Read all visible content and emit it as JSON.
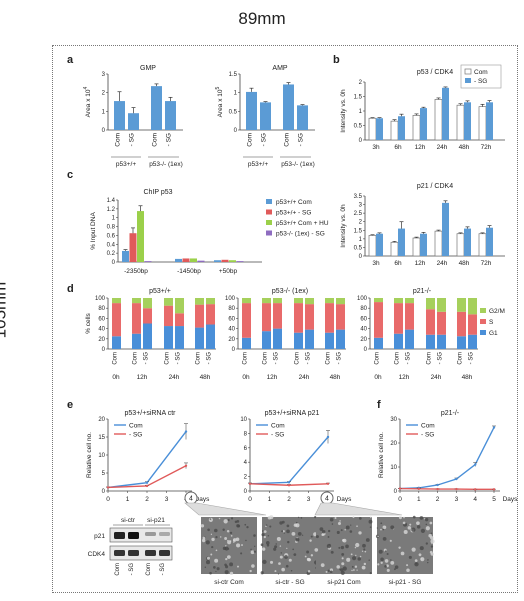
{
  "page": {
    "width_label": "89mm",
    "height_label": "105mm"
  },
  "chart_data": [
    {
      "panel": "a",
      "type": "bar",
      "title": "GMP",
      "ylabel": "Area x 10",
      "ylabel_exp": "4",
      "ylim": [
        0,
        3
      ],
      "yticks": [
        0,
        1,
        2,
        3
      ],
      "categories": [
        "Com",
        "- SG",
        "Com",
        "- SG"
      ],
      "groups": [
        "p53+/+",
        "p53-/- (1ex)"
      ],
      "values": [
        1.55,
        0.9,
        2.35,
        1.55
      ],
      "errors": [
        0.5,
        0.3,
        0.12,
        0.2
      ]
    },
    {
      "panel": "a",
      "type": "bar",
      "title": "AMP",
      "ylabel": "Area x 10",
      "ylabel_exp": "5",
      "ylim": [
        0,
        1.5
      ],
      "yticks": [
        0,
        0.5,
        1,
        1.5
      ],
      "categories": [
        "Com",
        "- SG",
        "Com",
        "- SG"
      ],
      "groups": [
        "p53+/+",
        "p53-/- (1ex)"
      ],
      "values": [
        1.02,
        0.74,
        1.22,
        0.66
      ],
      "errors": [
        0.1,
        0.02,
        0.05,
        0.02
      ]
    },
    {
      "panel": "b",
      "type": "bar",
      "title": "p53 / CDK4",
      "ylabel": "Intensity vs. 0h",
      "ylim": [
        0,
        2
      ],
      "yticks": [
        0,
        0.5,
        1,
        1.5,
        2
      ],
      "categories": [
        "3h",
        "6h",
        "12h",
        "24h",
        "48h",
        "72h"
      ],
      "series": [
        {
          "name": "Com",
          "values": [
            0.75,
            0.65,
            0.85,
            1.4,
            1.2,
            1.15
          ]
        },
        {
          "name": "- SG",
          "values": [
            0.75,
            0.82,
            1.1,
            1.8,
            1.3,
            1.3
          ]
        }
      ],
      "errors": [
        [
          0.02,
          0.05,
          0.05,
          0.05,
          0.05,
          0.08
        ],
        [
          0.02,
          0.07,
          0.03,
          0.03,
          0.05,
          0.06
        ]
      ]
    },
    {
      "panel": "b",
      "type": "bar",
      "title": "p21 / CDK4",
      "ylabel": "Intensity vs. 0h",
      "ylim": [
        0,
        3.5
      ],
      "yticks": [
        0,
        0.5,
        1,
        1.5,
        2,
        2.5,
        3,
        3.5
      ],
      "categories": [
        "3h",
        "6h",
        "12h",
        "24h",
        "48h",
        "72h"
      ],
      "series": [
        {
          "name": "Com",
          "values": [
            1.2,
            0.8,
            1.05,
            1.45,
            1.3,
            1.3
          ]
        },
        {
          "name": "- SG",
          "values": [
            1.3,
            1.6,
            1.3,
            3.1,
            1.6,
            1.65
          ]
        }
      ],
      "errors": [
        [
          0.04,
          0.05,
          0.05,
          0.06,
          0.05,
          0.05
        ],
        [
          0.05,
          0.4,
          0.08,
          0.12,
          0.1,
          0.12
        ]
      ]
    },
    {
      "panel": "c",
      "type": "bar",
      "title": "ChIP p53",
      "ylabel": "% Input DNA",
      "ylim": [
        0,
        1.4
      ],
      "yticks": [
        0,
        0.2,
        0.4,
        0.6,
        0.8,
        1,
        1.2,
        1.4
      ],
      "categories": [
        "-2350bp",
        "-1450bp",
        "+50bp"
      ],
      "series": [
        {
          "name": "p53+/+ Com",
          "color": "#5b9bd5",
          "values": [
            0.25,
            0.07,
            0.04
          ]
        },
        {
          "name": "p53+/+ - SG",
          "color": "#e05a5a",
          "values": [
            0.65,
            0.08,
            0.05
          ]
        },
        {
          "name": "p53+/+ Com + HU",
          "color": "#9bd04a",
          "values": [
            1.15,
            0.08,
            0.04
          ]
        },
        {
          "name": "p53-/- (1ex) - SG",
          "color": "#8e6cc0",
          "values": [
            0.02,
            0.03,
            0.02
          ]
        }
      ]
    },
    {
      "panel": "d",
      "type": "bar",
      "stacked": true,
      "ylabel": "% cells",
      "ylim": [
        0,
        100
      ],
      "yticks": [
        0,
        20,
        40,
        60,
        80,
        100
      ],
      "legend": [
        "G2/M",
        "S",
        "G1"
      ],
      "colors": {
        "G1": "#4a8fd8",
        "S": "#e86a6a",
        "G2/M": "#a6d05c"
      },
      "subplots": [
        {
          "title": "p53+/+",
          "categories": [
            "Com",
            "Com",
            "- SG",
            "Com",
            "- SG",
            "Com",
            "- SG"
          ],
          "times": [
            "0h",
            "12h",
            "24h",
            "48h"
          ],
          "G1": [
            25,
            30,
            50,
            45,
            45,
            42,
            48
          ],
          "S": [
            65,
            60,
            30,
            40,
            25,
            45,
            40
          ],
          "G2/M": [
            10,
            10,
            20,
            15,
            30,
            13,
            12
          ]
        },
        {
          "title": "p53-/- (1ex)",
          "categories": [
            "Com",
            "Com",
            "- SG",
            "Com",
            "- SG",
            "Com",
            "- SG"
          ],
          "times": [
            "0h",
            "12h",
            "24h",
            "48h"
          ],
          "G1": [
            22,
            35,
            40,
            32,
            38,
            32,
            38
          ],
          "S": [
            68,
            55,
            50,
            58,
            50,
            58,
            50
          ],
          "G2/M": [
            10,
            10,
            10,
            10,
            12,
            10,
            12
          ]
        },
        {
          "title": "p21-/-",
          "categories": [
            "Com",
            "Com",
            "- SG",
            "Com",
            "- SG",
            "Com",
            "- SG"
          ],
          "times": [
            "0h",
            "12h",
            "24h",
            "48h"
          ],
          "G1": [
            22,
            30,
            38,
            28,
            28,
            25,
            28
          ],
          "S": [
            70,
            60,
            52,
            50,
            45,
            48,
            40
          ],
          "G2/M": [
            8,
            10,
            10,
            22,
            27,
            27,
            32
          ]
        }
      ]
    },
    {
      "panel": "e",
      "type": "line",
      "title": "p53+/+siRNA ctr",
      "ylabel": "Relative cell no.",
      "xlabel": "Days",
      "ylim": [
        0,
        20
      ],
      "yticks": [
        0,
        5,
        10,
        15,
        20
      ],
      "x": [
        0,
        2,
        4
      ],
      "xticks": [
        0,
        1,
        2,
        3,
        4
      ],
      "series": [
        {
          "name": "Com",
          "color": "#4a8fd8",
          "values": [
            1,
            2.3,
            16.5
          ],
          "errors": [
            0.1,
            0.3,
            2.2
          ]
        },
        {
          "name": "- SG",
          "color": "#e05a5a",
          "values": [
            1,
            1.4,
            7
          ],
          "errors": [
            0.1,
            0.2,
            0.8
          ]
        }
      ]
    },
    {
      "panel": "e",
      "type": "line",
      "title": "p53+/+siRNA p21",
      "ylabel": "",
      "xlabel": "Days",
      "ylim": [
        0,
        10
      ],
      "yticks": [
        0,
        2,
        4,
        6,
        8,
        10
      ],
      "x": [
        0,
        2,
        4
      ],
      "xticks": [
        0,
        1,
        2,
        3,
        4
      ],
      "series": [
        {
          "name": "Com",
          "color": "#4a8fd8",
          "values": [
            1,
            1.2,
            7.5
          ],
          "errors": [
            0.1,
            0.1,
            0.9
          ]
        },
        {
          "name": "- SG",
          "color": "#e05a5a",
          "values": [
            1,
            0.8,
            1
          ],
          "errors": [
            0.1,
            0.1,
            0.1
          ]
        }
      ]
    },
    {
      "panel": "f",
      "type": "line",
      "title": "p21-/-",
      "ylabel": "Relative cell no.",
      "xlabel": "Days",
      "ylim": [
        0,
        30
      ],
      "yticks": [
        0,
        10,
        20,
        30
      ],
      "x": [
        0,
        1,
        2,
        3,
        4,
        5
      ],
      "xticks": [
        0,
        1,
        2,
        3,
        4,
        5
      ],
      "series": [
        {
          "name": "Com",
          "color": "#4a8fd8",
          "values": [
            1,
            1.3,
            2.5,
            5,
            11,
            26.5
          ],
          "errors": [
            0.1,
            0.1,
            0.2,
            0.4,
            0.8,
            0.6
          ]
        },
        {
          "name": "- SG",
          "color": "#e05a5a",
          "values": [
            1,
            0.9,
            0.8,
            0.8,
            0.7,
            0.7
          ],
          "errors": [
            0.05,
            0.05,
            0.05,
            0.05,
            0.05,
            0.05
          ]
        }
      ]
    }
  ],
  "panel_letters": [
    "a",
    "b",
    "c",
    "d",
    "e",
    "f"
  ],
  "legend_com_sg": [
    "Com",
    "- SG"
  ],
  "western": {
    "columns": [
      "si-ctr",
      "si-p21"
    ],
    "rows": [
      "p21",
      "CDK4"
    ],
    "lanes": [
      "Com",
      "- SG",
      "Com",
      "- SG"
    ]
  },
  "micrographs": {
    "left": [
      "si-ctr Com",
      "si-ctr - SG"
    ],
    "right": [
      "si-p21 Com",
      "si-p21 - SG"
    ],
    "callout": "4"
  }
}
